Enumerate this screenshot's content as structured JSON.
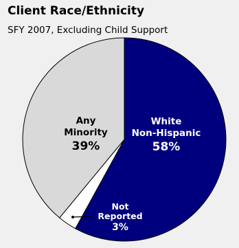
{
  "chart_data": {
    "type": "pie",
    "title": "Client Race/Ethnicity",
    "subtitle": "SFY 2007, Excluding Child Support",
    "slices": [
      {
        "label_lines": [
          "White",
          "Non-Hispanic"
        ],
        "value": 58,
        "value_label": "58%",
        "color": "#00007e",
        "text_color": "#ffffff"
      },
      {
        "label_lines": [
          "Not",
          "Reported"
        ],
        "value": 3,
        "value_label": "3%",
        "color": "#ffffff",
        "text_color": "#ffffff"
      },
      {
        "label_lines": [
          "Any",
          "Minority"
        ],
        "value": 39,
        "value_label": "39%",
        "color": "#d9d9d9",
        "text_color": "#000000"
      }
    ]
  }
}
